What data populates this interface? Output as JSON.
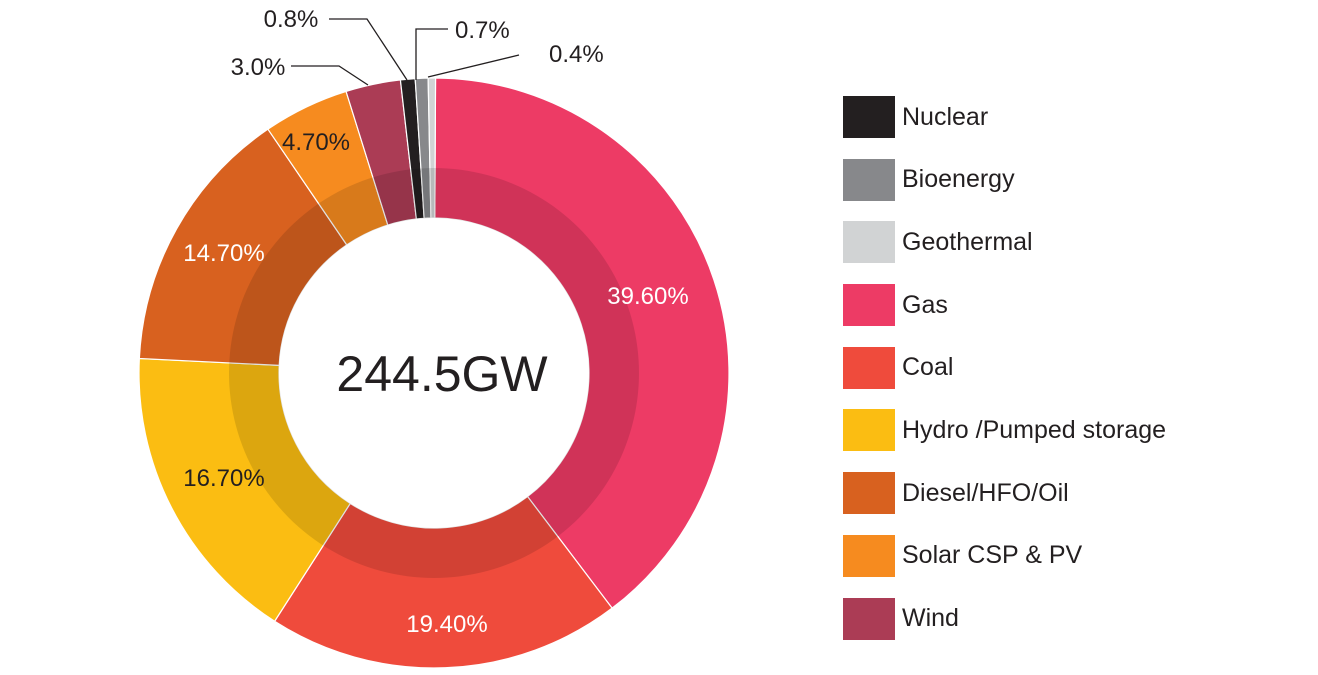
{
  "chart_data": {
    "type": "pie",
    "center_label": "244.5GW",
    "slices": [
      {
        "name": "Gas",
        "value": 39.6,
        "label": "39.60%",
        "color": "#ed3b65"
      },
      {
        "name": "Coal",
        "value": 19.4,
        "label": "19.40%",
        "color": "#ef4b3c"
      },
      {
        "name": "Hydro /Pumped storage",
        "value": 16.7,
        "label": "16.70%",
        "color": "#fbbd12"
      },
      {
        "name": "Diesel/HFO/Oil",
        "value": 14.7,
        "label": "14.70%",
        "color": "#d8611f"
      },
      {
        "name": "Solar CSP & PV",
        "value": 4.7,
        "label": "4.70%",
        "color": "#f68b1f"
      },
      {
        "name": "Wind",
        "value": 3.0,
        "label": "3.0%",
        "color": "#ab3c55"
      },
      {
        "name": "Nuclear",
        "value": 0.8,
        "label": "0.8%",
        "color": "#231f20"
      },
      {
        "name": "Bioenergy",
        "value": 0.7,
        "label": "0.7%",
        "color": "#87888b"
      },
      {
        "name": "Geothermal",
        "value": 0.4,
        "label": "0.4%",
        "color": "#d1d3d4"
      }
    ],
    "legend": [
      "Nuclear",
      "Bioenergy",
      "Geothermal",
      "Gas",
      "Coal",
      "Hydro /Pumped storage",
      "Diesel/HFO/Oil",
      "Solar CSP & PV",
      "Wind"
    ],
    "legend_position": "right"
  }
}
